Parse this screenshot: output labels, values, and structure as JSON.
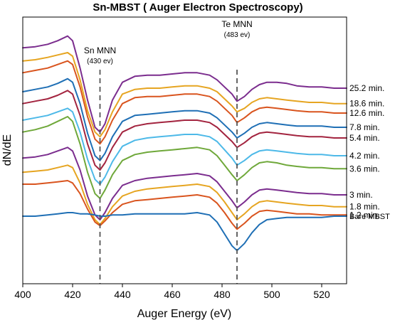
{
  "chart_data": {
    "type": "line",
    "title": "Sn-MBST ( Auger Electron Spectroscopy)",
    "xlabel": "Auger Energy (eV)",
    "ylabel": "dN/dE",
    "xlim": [
      400,
      530
    ],
    "x_ticks": [
      400,
      420,
      440,
      460,
      480,
      500,
      520
    ],
    "grid": false,
    "legend": "series labels at right end of each curve",
    "annotations": [
      {
        "x": 431,
        "label": "Sn MNN",
        "sublabel": "(430 ev)"
      },
      {
        "x": 486,
        "label": "Te MNN",
        "sublabel": "(483 ev)"
      }
    ],
    "x": [
      400,
      405,
      410,
      414,
      418,
      420,
      423,
      426,
      429,
      431,
      433,
      436,
      440,
      445,
      450,
      455,
      460,
      465,
      470,
      475,
      478,
      481,
      484,
      486,
      489,
      492,
      495,
      498,
      502,
      506,
      510,
      515,
      520,
      525,
      530
    ],
    "series": [
      {
        "name": "25.2 min.",
        "color": "#7b2d8e",
        "values": [
          0.59,
          0.6,
          0.62,
          0.65,
          0.69,
          0.65,
          0.42,
          0.15,
          -0.08,
          -0.12,
          -0.05,
          0.15,
          0.3,
          0.35,
          0.36,
          0.36,
          0.37,
          0.38,
          0.38,
          0.36,
          0.32,
          0.26,
          0.2,
          0.14,
          0.18,
          0.24,
          0.28,
          0.3,
          0.3,
          0.29,
          0.27,
          0.26,
          0.26,
          0.25,
          0.25
        ]
      },
      {
        "name": "18.6 min.",
        "color": "#e6a521",
        "values": [
          0.48,
          0.49,
          0.51,
          0.53,
          0.55,
          0.52,
          0.32,
          0.06,
          -0.12,
          -0.16,
          -0.1,
          0.05,
          0.2,
          0.24,
          0.25,
          0.25,
          0.26,
          0.27,
          0.27,
          0.25,
          0.22,
          0.16,
          0.1,
          0.05,
          0.08,
          0.13,
          0.16,
          0.17,
          0.16,
          0.15,
          0.14,
          0.13,
          0.13,
          0.12,
          0.12
        ]
      },
      {
        "name": "12.6 min.",
        "color": "#d9541e",
        "values": [
          0.38,
          0.4,
          0.42,
          0.45,
          0.48,
          0.45,
          0.26,
          0.01,
          -0.18,
          -0.22,
          -0.16,
          -0.02,
          0.12,
          0.17,
          0.18,
          0.18,
          0.19,
          0.2,
          0.2,
          0.18,
          0.14,
          0.08,
          0.02,
          -0.04,
          0.0,
          0.05,
          0.08,
          0.09,
          0.08,
          0.07,
          0.06,
          0.05,
          0.05,
          0.04,
          0.04
        ]
      },
      {
        "name": "7.8 min.",
        "color": "#1f6fb5",
        "values": [
          0.22,
          0.24,
          0.26,
          0.29,
          0.33,
          0.3,
          0.12,
          -0.13,
          -0.32,
          -0.36,
          -0.3,
          -0.16,
          -0.03,
          0.02,
          0.03,
          0.04,
          0.05,
          0.06,
          0.06,
          0.04,
          0.0,
          -0.06,
          -0.12,
          -0.17,
          -0.13,
          -0.08,
          -0.05,
          -0.04,
          -0.05,
          -0.06,
          -0.07,
          -0.07,
          -0.07,
          -0.08,
          -0.08
        ]
      },
      {
        "name": "5.4 min.",
        "color": "#a3243f",
        "values": [
          0.12,
          0.14,
          0.16,
          0.19,
          0.23,
          0.2,
          0.02,
          -0.22,
          -0.4,
          -0.44,
          -0.38,
          -0.25,
          -0.12,
          -0.07,
          -0.05,
          -0.04,
          -0.03,
          -0.02,
          -0.02,
          -0.04,
          -0.08,
          -0.14,
          -0.2,
          -0.25,
          -0.21,
          -0.16,
          -0.13,
          -0.12,
          -0.13,
          -0.14,
          -0.15,
          -0.16,
          -0.16,
          -0.17,
          -0.17
        ]
      },
      {
        "name": "4.2 min.",
        "color": "#4db9e8",
        "values": [
          -0.02,
          0.0,
          0.02,
          0.05,
          0.08,
          0.05,
          -0.12,
          -0.35,
          -0.52,
          -0.56,
          -0.5,
          -0.37,
          -0.24,
          -0.19,
          -0.17,
          -0.16,
          -0.15,
          -0.14,
          -0.14,
          -0.16,
          -0.2,
          -0.27,
          -0.34,
          -0.4,
          -0.36,
          -0.31,
          -0.28,
          -0.27,
          -0.28,
          -0.29,
          -0.3,
          -0.31,
          -0.31,
          -0.32,
          -0.32
        ]
      },
      {
        "name": "3.6 min.",
        "color": "#6fa83a",
        "values": [
          -0.12,
          -0.1,
          -0.07,
          -0.03,
          0.01,
          -0.03,
          -0.22,
          -0.46,
          -0.64,
          -0.68,
          -0.61,
          -0.48,
          -0.36,
          -0.31,
          -0.29,
          -0.28,
          -0.27,
          -0.26,
          -0.25,
          -0.27,
          -0.32,
          -0.4,
          -0.48,
          -0.53,
          -0.48,
          -0.42,
          -0.38,
          -0.37,
          -0.38,
          -0.4,
          -0.41,
          -0.42,
          -0.42,
          -0.43,
          -0.43
        ]
      },
      {
        "name": "3 min.",
        "color": "#7b2d8e",
        "values": [
          -0.34,
          -0.33,
          -0.31,
          -0.28,
          -0.25,
          -0.28,
          -0.44,
          -0.66,
          -0.82,
          -0.86,
          -0.8,
          -0.68,
          -0.57,
          -0.53,
          -0.51,
          -0.5,
          -0.49,
          -0.48,
          -0.47,
          -0.49,
          -0.54,
          -0.62,
          -0.7,
          -0.76,
          -0.71,
          -0.65,
          -0.61,
          -0.6,
          -0.61,
          -0.62,
          -0.63,
          -0.64,
          -0.64,
          -0.65,
          -0.65
        ]
      },
      {
        "name": "1.8 min.",
        "color": "#e6a521",
        "values": [
          -0.46,
          -0.45,
          -0.44,
          -0.42,
          -0.4,
          -0.42,
          -0.55,
          -0.73,
          -0.86,
          -0.9,
          -0.85,
          -0.75,
          -0.66,
          -0.62,
          -0.6,
          -0.59,
          -0.58,
          -0.57,
          -0.56,
          -0.58,
          -0.63,
          -0.71,
          -0.8,
          -0.86,
          -0.81,
          -0.75,
          -0.71,
          -0.7,
          -0.71,
          -0.72,
          -0.73,
          -0.74,
          -0.74,
          -0.75,
          -0.75
        ]
      },
      {
        "name": "1.2 min.",
        "color": "#d9541e",
        "values": [
          -0.56,
          -0.56,
          -0.55,
          -0.54,
          -0.53,
          -0.55,
          -0.64,
          -0.77,
          -0.88,
          -0.91,
          -0.87,
          -0.8,
          -0.73,
          -0.7,
          -0.69,
          -0.68,
          -0.67,
          -0.66,
          -0.65,
          -0.67,
          -0.72,
          -0.8,
          -0.89,
          -0.94,
          -0.89,
          -0.83,
          -0.79,
          -0.78,
          -0.79,
          -0.8,
          -0.81,
          -0.81,
          -0.82,
          -0.82,
          -0.82
        ]
      },
      {
        "name": "Bare MBST",
        "color": "#1f6fb5",
        "values": [
          -0.83,
          -0.83,
          -0.82,
          -0.81,
          -0.8,
          -0.8,
          -0.81,
          -0.81,
          -0.82,
          -0.83,
          -0.83,
          -0.82,
          -0.82,
          -0.81,
          -0.81,
          -0.81,
          -0.81,
          -0.81,
          -0.8,
          -0.82,
          -0.88,
          -0.98,
          -1.08,
          -1.12,
          -1.06,
          -0.97,
          -0.9,
          -0.86,
          -0.85,
          -0.84,
          -0.84,
          -0.84,
          -0.84,
          -0.83,
          -0.83
        ]
      }
    ]
  }
}
